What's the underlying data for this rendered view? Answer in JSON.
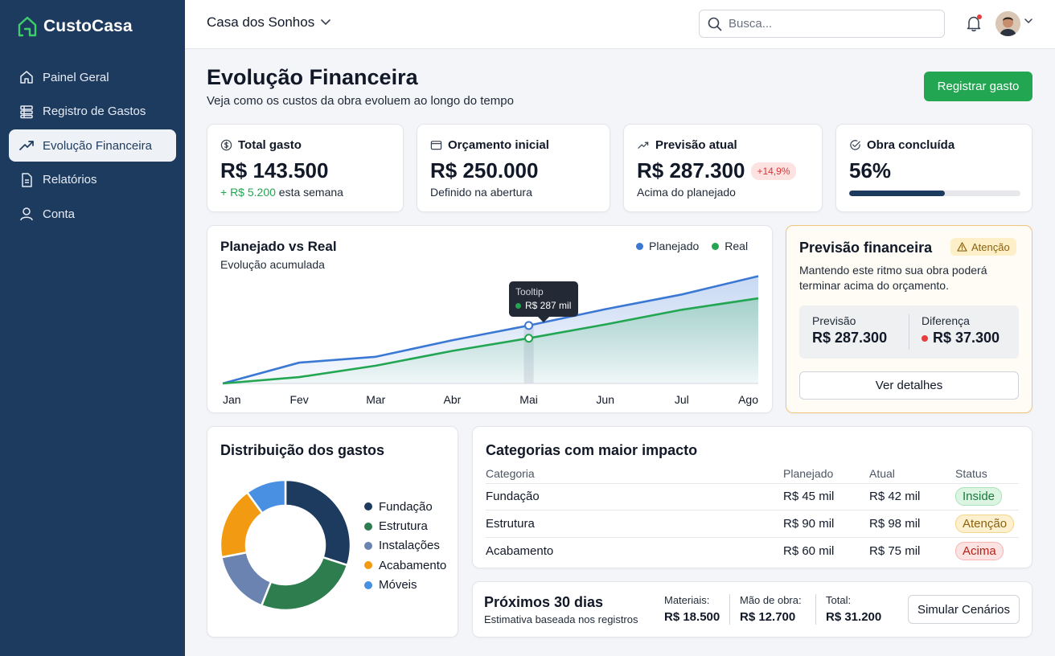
{
  "app": {
    "name": "CustoCasa"
  },
  "colors": {
    "sidebar": "#1d3a5f",
    "accent": "#22a652",
    "planned": "#3b78d4",
    "real": "#22a652"
  },
  "sidebar": {
    "items": [
      {
        "label": "Painel Geral",
        "icon": "home-icon"
      },
      {
        "label": "Registro de Gastos",
        "icon": "ledger-icon"
      },
      {
        "label": "Evolução Financeira",
        "icon": "trend-icon",
        "active": true
      },
      {
        "label": "Relatórios",
        "icon": "document-icon"
      },
      {
        "label": "Conta",
        "icon": "user-icon"
      }
    ]
  },
  "topbar": {
    "project": "Casa dos Sonhos",
    "search_placeholder": "Busca..."
  },
  "header": {
    "title": "Evolução Financeira",
    "subtitle": "Veja como os custos da obra evoluem ao longo do tempo",
    "primary_button": "Registrar gasto"
  },
  "stats": {
    "total": {
      "title": "Total gasto",
      "value": "R$ 143.500",
      "delta": "+ R$ 5.200",
      "note": "esta semana"
    },
    "budget": {
      "title": "Orçamento inicial",
      "value": "R$ 250.000",
      "note": "Definido na abertura"
    },
    "forecast": {
      "title": "Previsão atual",
      "value": "R$ 287.300",
      "badge": "+14,9%",
      "note": "Acima do planejado"
    },
    "progress": {
      "title": "Obra concluída",
      "value": "56%",
      "fraction": 0.56
    }
  },
  "line_chart": {
    "title": "Planejado vs Real",
    "subtitle": "Evolução acumulada",
    "tooltip_title": "Tooltip",
    "tooltip_value": "R$ 287 mil"
  },
  "chart_data": [
    {
      "type": "area",
      "title": "Planejado vs Real",
      "subtitle": "Evolução acumulada",
      "categories": [
        "Jan",
        "Fev",
        "Mar",
        "Abr",
        "Mai",
        "Jun",
        "Jul",
        "Ago"
      ],
      "series": [
        {
          "name": "Planejado",
          "color": "#3b78d4",
          "values": [
            0,
            82,
            105,
            170,
            228,
            292,
            350,
            422
          ]
        },
        {
          "name": "Real",
          "color": "#22a652",
          "values": [
            0,
            25,
            70,
            128,
            178,
            232,
            290,
            335
          ]
        }
      ],
      "ylim": [
        0,
        430
      ],
      "highlight": "Mai",
      "legend": "top-right"
    },
    {
      "type": "pie",
      "title": "Distribuição dos gastos",
      "labels": [
        "Fundação",
        "Estrutura",
        "Instalações",
        "Acabamento",
        "Móveis"
      ],
      "values": [
        30,
        26,
        16,
        18,
        10
      ],
      "colors": [
        "#1d3a5f",
        "#2e7d4f",
        "#6a83b0",
        "#f29a11",
        "#4a90e2"
      ],
      "legend": "right"
    }
  ],
  "forecast_card": {
    "title": "Previsão financeira",
    "badge": "Atenção",
    "text": "Mantendo este ritmo sua obra poderá terminar acima do orçamento.",
    "forecast_label": "Previsão",
    "forecast_value": "R$ 287.300",
    "diff_label": "Diferença",
    "diff_value": "R$ 37.300",
    "button": "Ver detalhes"
  },
  "categories_table": {
    "title": "Categorias com maior impacto",
    "headers": [
      "Categoria",
      "Planejado",
      "Atual",
      "Status"
    ],
    "rows": [
      {
        "category": "Fundação",
        "planned": "R$ 45 mil",
        "actual": "R$ 42 mil",
        "status": "Inside",
        "level": "ok"
      },
      {
        "category": "Estrutura",
        "planned": "R$ 90 mil",
        "actual": "R$ 98 mil",
        "status": "Atenção",
        "level": "warn"
      },
      {
        "category": "Acabamento",
        "planned": "R$ 60 mil",
        "actual": "R$ 75 mil",
        "status": "Acima",
        "level": "bad"
      }
    ]
  },
  "next30": {
    "title": "Próximos 30 dias",
    "subtitle": "Estimativa baseada nos registros",
    "materials_label": "Materiais:",
    "materials_value": "R$ 18.500",
    "labor_label": "Mão de obra:",
    "labor_value": "R$ 12.700",
    "total_label": "Total:",
    "total_value": "R$ 31.200",
    "button": "Simular Cenários"
  }
}
